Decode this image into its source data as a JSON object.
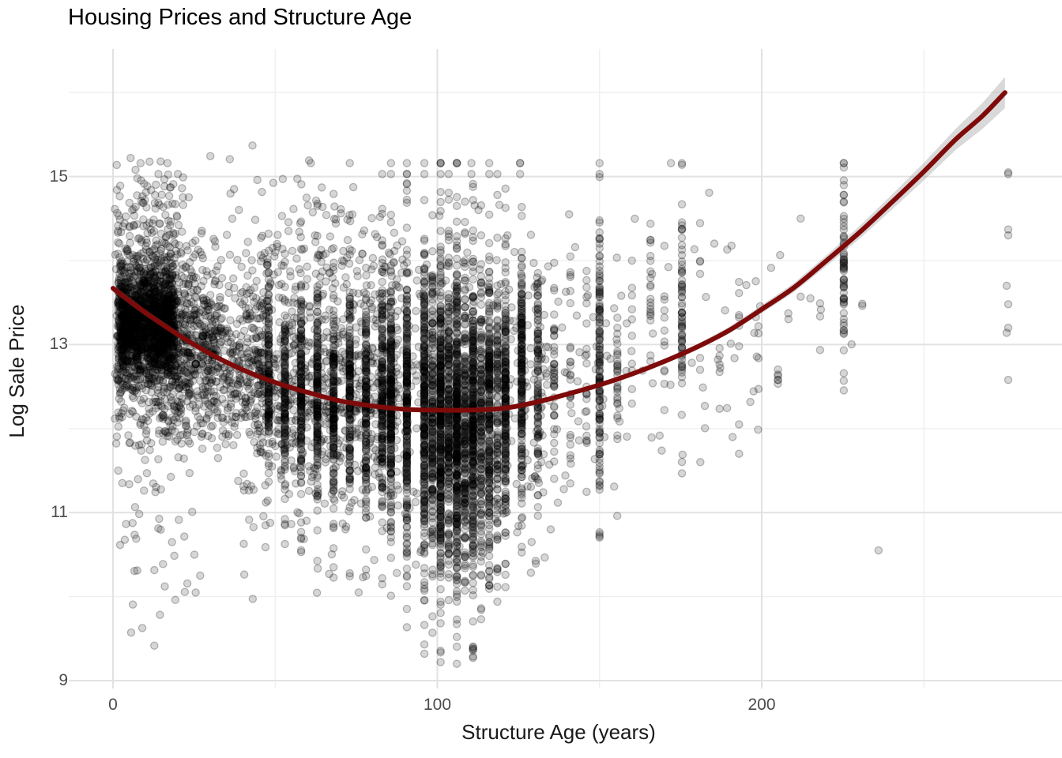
{
  "title": "Housing Prices and Structure Age",
  "axes": {
    "x": {
      "label": "Structure Age (years)",
      "ticks": [
        0,
        100,
        200
      ],
      "minor_ticks": [
        50,
        150,
        250
      ],
      "range": [
        -13.6,
        292.5
      ]
    },
    "y": {
      "label": "Log Sale Price",
      "ticks": [
        9,
        11,
        13,
        15
      ],
      "minor_ticks": [
        10,
        12,
        14,
        16
      ],
      "range": [
        8.88,
        16.52
      ]
    }
  },
  "colors": {
    "background": "#ffffff",
    "grid_major": "#e2e2e2",
    "grid_minor": "#efefef",
    "point": "#000000",
    "trend": "#7f0a0a",
    "ribbon": "#787878",
    "tick_label": "#4d4d4d",
    "title_text": "#000000"
  },
  "chart_data": {
    "type": "scatter",
    "title": "Housing Prices and Structure Age",
    "xlabel": "Structure Age (years)",
    "ylabel": "Log Sale Price",
    "xlim": [
      -13.6,
      292.5
    ],
    "ylim": [
      8.88,
      16.52
    ],
    "grid": "on",
    "legend": "none",
    "point_style": {
      "color": "#000000",
      "fill_alpha": 0.16,
      "stroke_alpha": 0.26,
      "stroke_width": 1.3,
      "radius": 4.6
    },
    "trend": {
      "color": "#7f0a0a",
      "width": 6,
      "ribbon_alpha": 0.28,
      "points": [
        [
          0,
          13.67
        ],
        [
          10,
          13.38
        ],
        [
          20,
          13.12
        ],
        [
          30,
          12.89
        ],
        [
          40,
          12.7
        ],
        [
          50,
          12.55
        ],
        [
          60,
          12.43
        ],
        [
          70,
          12.33
        ],
        [
          80,
          12.27
        ],
        [
          90,
          12.23
        ],
        [
          100,
          12.22
        ],
        [
          110,
          12.22
        ],
        [
          120,
          12.24
        ],
        [
          130,
          12.31
        ],
        [
          140,
          12.41
        ],
        [
          150,
          12.52
        ],
        [
          160,
          12.65
        ],
        [
          170,
          12.8
        ],
        [
          180,
          12.97
        ],
        [
          190,
          13.17
        ],
        [
          200,
          13.42
        ],
        [
          210,
          13.68
        ],
        [
          220,
          14.0
        ],
        [
          230,
          14.33
        ],
        [
          240,
          14.69
        ],
        [
          250,
          15.06
        ],
        [
          260,
          15.45
        ],
        [
          268,
          15.72
        ],
        [
          275,
          16.0
        ]
      ],
      "ribbon_halfwidth": [
        [
          0,
          0.045
        ],
        [
          40,
          0.025
        ],
        [
          80,
          0.018
        ],
        [
          130,
          0.018
        ],
        [
          160,
          0.025
        ],
        [
          190,
          0.04
        ],
        [
          210,
          0.055
        ],
        [
          230,
          0.075
        ],
        [
          245,
          0.095
        ],
        [
          258,
          0.12
        ],
        [
          266,
          0.145
        ],
        [
          275,
          0.185
        ]
      ]
    },
    "scatter_spec": {
      "seed": 1337,
      "clouds": [
        {
          "a0": 1.5,
          "a1": 19,
          "n": 1400,
          "mean": 13.25,
          "sd": 0.34,
          "min": 12.3,
          "max": 14.3
        },
        {
          "a0": 1,
          "a1": 26,
          "n": 500,
          "mean": 13.1,
          "sd": 0.6,
          "min": 11.7,
          "max": 14.6
        },
        {
          "a0": 0.5,
          "a1": 24,
          "n": 150,
          "mean": 12.7,
          "sd": 1.0,
          "min": 10.6,
          "max": 15.2
        },
        {
          "a0": 1,
          "a1": 22,
          "n": 95,
          "mean": 14.55,
          "sd": 0.33,
          "min": 14.05,
          "max": 15.25
        },
        {
          "a0": 2,
          "a1": 30,
          "n": 30,
          "mean": 10.6,
          "sd": 0.55,
          "min": 9.4,
          "max": 11.4
        },
        {
          "a0": 12,
          "a1": 32,
          "n": 360,
          "mean": 12.95,
          "sd": 0.5,
          "min": 11.6,
          "max": 14.4
        },
        {
          "a0": 26,
          "a1": 48,
          "n": 420,
          "mean": 12.8,
          "sd": 0.55,
          "min": 11.2,
          "max": 14.5
        },
        {
          "a0": 30,
          "a1": 80,
          "n": 65,
          "mean": 14.3,
          "sd": 0.5,
          "min": 13.6,
          "max": 15.3
        },
        {
          "a0": 44,
          "a1": 88,
          "n": 640,
          "mean": 12.45,
          "sd": 0.55,
          "min": 10.8,
          "max": 14.2
        },
        {
          "a0": 45,
          "a1": 90,
          "n": 120,
          "mean": 13.8,
          "sd": 0.4,
          "min": 13.2,
          "max": 14.8
        },
        {
          "a0": 40,
          "a1": 85,
          "n": 70,
          "mean": 11.2,
          "sd": 0.5,
          "min": 9.9,
          "max": 12.0
        },
        {
          "a0": 85,
          "a1": 135,
          "n": 360,
          "mean": 12.4,
          "sd": 0.9,
          "min": 9.8,
          "max": 15.0
        },
        {
          "a0": 135,
          "a1": 160,
          "n": 50,
          "mean": 12.6,
          "sd": 0.8,
          "min": 10.9,
          "max": 14.6
        },
        {
          "a0": 160,
          "a1": 200,
          "n": 38,
          "mean": 13.1,
          "sd": 1.0,
          "min": 11.3,
          "max": 15.2
        },
        {
          "a0": 200,
          "a1": 232,
          "n": 6,
          "mean": 13.5,
          "sd": 0.8,
          "min": 12.4,
          "max": 14.8
        }
      ],
      "columns": [
        {
          "age": 48,
          "n": 70,
          "mean": 12.55,
          "sd": 0.45,
          "min": 11.4,
          "max": 13.8
        },
        {
          "age": 48,
          "n": 40,
          "mean": 12.5,
          "sd": 0.9,
          "min": 10.5,
          "max": 14.8
        },
        {
          "age": 53,
          "n": 90,
          "mean": 12.5,
          "sd": 0.5,
          "min": 11.3,
          "max": 13.8
        },
        {
          "age": 53,
          "n": 40,
          "mean": 12.5,
          "sd": 0.95,
          "min": 10.4,
          "max": 15.0
        },
        {
          "age": 58,
          "n": 110,
          "mean": 12.45,
          "sd": 0.5,
          "min": 11.2,
          "max": 13.8
        },
        {
          "age": 58,
          "n": 45,
          "mean": 12.4,
          "sd": 1.0,
          "min": 10.3,
          "max": 15.0
        },
        {
          "age": 63,
          "n": 120,
          "mean": 12.4,
          "sd": 0.5,
          "min": 11.2,
          "max": 13.8
        },
        {
          "age": 63,
          "n": 50,
          "mean": 12.4,
          "sd": 1.0,
          "min": 10.2,
          "max": 15.0
        },
        {
          "age": 68,
          "n": 120,
          "mean": 12.35,
          "sd": 0.5,
          "min": 11.1,
          "max": 13.8
        },
        {
          "age": 68,
          "n": 50,
          "mean": 12.4,
          "sd": 1.0,
          "min": 10.2,
          "max": 15.0
        },
        {
          "age": 73,
          "n": 110,
          "mean": 12.35,
          "sd": 0.55,
          "min": 11.0,
          "max": 13.9
        },
        {
          "age": 73,
          "n": 50,
          "mean": 12.4,
          "sd": 1.0,
          "min": 10.0,
          "max": 15.0
        },
        {
          "age": 78,
          "n": 100,
          "mean": 12.35,
          "sd": 0.55,
          "min": 11.0,
          "max": 13.9
        },
        {
          "age": 78,
          "n": 50,
          "mean": 12.3,
          "sd": 1.0,
          "min": 10.0,
          "max": 15.0
        },
        {
          "age": 83,
          "n": 120,
          "mean": 12.3,
          "sd": 0.6,
          "min": 10.9,
          "max": 14.0
        },
        {
          "age": 83,
          "n": 60,
          "mean": 12.3,
          "sd": 1.1,
          "min": 9.9,
          "max": 15.0
        },
        {
          "age": 85.7,
          "n": 150,
          "mean": 12.3,
          "sd": 0.65,
          "min": 10.7,
          "max": 14.2
        },
        {
          "age": 85.7,
          "n": 75,
          "mean": 12.3,
          "sd": 1.2,
          "min": 9.8,
          "max": 15.05
        },
        {
          "age": 90.6,
          "n": 170,
          "mean": 12.25,
          "sd": 0.7,
          "min": 10.5,
          "max": 14.3
        },
        {
          "age": 90.6,
          "n": 85,
          "mean": 12.2,
          "sd": 1.3,
          "min": 9.6,
          "max": 15.05
        },
        {
          "age": 96,
          "n": 190,
          "mean": 12.2,
          "sd": 0.75,
          "min": 10.3,
          "max": 14.4
        },
        {
          "age": 96,
          "n": 95,
          "mean": 12.2,
          "sd": 1.3,
          "min": 9.3,
          "max": 15.05
        },
        {
          "age": 98.5,
          "n": 130,
          "mean": 12.2,
          "sd": 0.75,
          "min": 10.3,
          "max": 14.4
        },
        {
          "age": 98.5,
          "n": 65,
          "mean": 12.2,
          "sd": 1.3,
          "min": 9.5,
          "max": 15.0
        },
        {
          "age": 101,
          "n": 240,
          "mean": 12.15,
          "sd": 0.8,
          "min": 10.2,
          "max": 14.5
        },
        {
          "age": 101,
          "n": 125,
          "mean": 12.1,
          "sd": 1.4,
          "min": 9.2,
          "max": 15.05
        },
        {
          "age": 103.5,
          "n": 150,
          "mean": 12.1,
          "sd": 0.8,
          "min": 10.2,
          "max": 14.5
        },
        {
          "age": 103.5,
          "n": 75,
          "mean": 12.1,
          "sd": 1.35,
          "min": 9.4,
          "max": 15.0
        },
        {
          "age": 106,
          "n": 240,
          "mean": 12.1,
          "sd": 0.8,
          "min": 10.1,
          "max": 14.5
        },
        {
          "age": 106,
          "n": 125,
          "mean": 12.0,
          "sd": 1.4,
          "min": 9.2,
          "max": 15.05
        },
        {
          "age": 108.5,
          "n": 140,
          "mean": 12.05,
          "sd": 0.8,
          "min": 10.1,
          "max": 14.4
        },
        {
          "age": 108.5,
          "n": 70,
          "mean": 12.0,
          "sd": 1.3,
          "min": 9.4,
          "max": 15.0
        },
        {
          "age": 111,
          "n": 220,
          "mean": 12.0,
          "sd": 0.8,
          "min": 10.0,
          "max": 14.4
        },
        {
          "age": 111,
          "n": 110,
          "mean": 12.0,
          "sd": 1.35,
          "min": 9.25,
          "max": 15.0
        },
        {
          "age": 113.5,
          "n": 110,
          "mean": 12.1,
          "sd": 0.75,
          "min": 10.2,
          "max": 14.4
        },
        {
          "age": 113.5,
          "n": 55,
          "mean": 12.1,
          "sd": 1.25,
          "min": 9.6,
          "max": 15.0
        },
        {
          "age": 116,
          "n": 160,
          "mean": 12.15,
          "sd": 0.75,
          "min": 10.3,
          "max": 14.5
        },
        {
          "age": 116,
          "n": 80,
          "mean": 12.1,
          "sd": 1.25,
          "min": 9.7,
          "max": 15.0
        },
        {
          "age": 118.5,
          "n": 80,
          "mean": 12.2,
          "sd": 0.7,
          "min": 10.5,
          "max": 14.4
        },
        {
          "age": 118.5,
          "n": 40,
          "mean": 12.2,
          "sd": 1.2,
          "min": 9.9,
          "max": 15.0
        },
        {
          "age": 121,
          "n": 140,
          "mean": 12.3,
          "sd": 0.7,
          "min": 10.6,
          "max": 14.5
        },
        {
          "age": 121,
          "n": 70,
          "mean": 12.3,
          "sd": 1.15,
          "min": 10.1,
          "max": 15.0
        },
        {
          "age": 126,
          "n": 140,
          "mean": 12.55,
          "sd": 0.7,
          "min": 10.8,
          "max": 14.6
        },
        {
          "age": 126,
          "n": 70,
          "mean": 12.5,
          "sd": 1.1,
          "min": 10.3,
          "max": 15.1
        },
        {
          "age": 131,
          "n": 60,
          "mean": 12.6,
          "sd": 0.65,
          "min": 11.0,
          "max": 14.4
        },
        {
          "age": 131,
          "n": 35,
          "mean": 12.6,
          "sd": 1.0,
          "min": 10.5,
          "max": 15.0
        },
        {
          "age": 136,
          "n": 40,
          "mean": 12.6,
          "sd": 0.7,
          "min": 10.8,
          "max": 14.6
        },
        {
          "age": 141,
          "n": 25,
          "mean": 12.6,
          "sd": 0.65,
          "min": 11.0,
          "max": 14.4
        },
        {
          "age": 146,
          "n": 18,
          "mean": 12.7,
          "sd": 0.6,
          "min": 11.2,
          "max": 14.4
        },
        {
          "age": 150,
          "n": 85,
          "mean": 12.7,
          "sd": 0.7,
          "min": 11.3,
          "max": 14.6
        },
        {
          "age": 150,
          "n": 50,
          "mean": 12.7,
          "sd": 1.2,
          "min": 10.2,
          "max": 15.1
        },
        {
          "age": 155.5,
          "n": 28,
          "mean": 12.5,
          "sd": 0.45,
          "min": 11.8,
          "max": 13.4
        },
        {
          "age": 160,
          "n": 10,
          "mean": 13.0,
          "sd": 0.6,
          "min": 12.0,
          "max": 14.2
        },
        {
          "age": 165.7,
          "n": 20,
          "mean": 13.6,
          "sd": 0.5,
          "min": 12.7,
          "max": 14.85
        },
        {
          "age": 170,
          "n": 12,
          "mean": 13.1,
          "sd": 0.8,
          "min": 11.8,
          "max": 14.6
        },
        {
          "age": 175.4,
          "n": 42,
          "mean": 13.55,
          "sd": 0.6,
          "min": 12.5,
          "max": 14.9
        },
        {
          "age": 175.4,
          "n": 25,
          "mean": 13.4,
          "sd": 1.1,
          "min": 11.4,
          "max": 15.2
        },
        {
          "age": 181,
          "n": 6,
          "mean": 13.3,
          "sd": 0.7,
          "min": 12.2,
          "max": 14.6
        },
        {
          "age": 187,
          "n": 5,
          "mean": 13.1,
          "sd": 0.6,
          "min": 12.2,
          "max": 14.2
        },
        {
          "age": 193,
          "n": 6,
          "mean": 13.4,
          "sd": 0.6,
          "min": 12.4,
          "max": 14.3
        },
        {
          "age": 199,
          "n": 4,
          "mean": 12.8,
          "sd": 0.4,
          "min": 12.2,
          "max": 13.5
        },
        {
          "age": 205,
          "n": 6,
          "mean": 12.6,
          "sd": 0.08,
          "min": 12.45,
          "max": 12.75
        },
        {
          "age": 218,
          "n": 3,
          "mean": 13.3,
          "sd": 0.5,
          "min": 12.6,
          "max": 14.0
        },
        {
          "age": 225.3,
          "n": 42,
          "mean": 13.75,
          "sd": 0.55,
          "min": 12.9,
          "max": 15.0
        },
        {
          "age": 225.3,
          "n": 20,
          "mean": 13.6,
          "sd": 1.0,
          "min": 12.4,
          "max": 15.2
        },
        {
          "age": 231,
          "n": 2,
          "mean": 13.4,
          "sd": 0.3,
          "min": 13.0,
          "max": 13.8
        }
      ],
      "cap_rows": [
        {
          "v": 15.16,
          "ages": [
            8.5,
            16.8,
            61,
            73,
            85.7,
            90.6,
            96,
            101,
            101,
            101,
            106,
            106,
            106,
            110.5,
            116,
            125.5,
            125.5,
            150,
            172,
            175.4,
            225.3,
            225.3
          ]
        },
        {
          "v": 15.03,
          "ages": [
            14,
            20,
            83,
            85.7,
            90.6,
            96,
            101,
            103.5,
            110.5,
            116,
            118.5,
            125.5,
            150,
            276
          ]
        }
      ],
      "extra_points": [
        [
          43,
          15.37,
          1
        ],
        [
          25.5,
          12.77,
          6
        ],
        [
          236,
          10.55,
          1
        ],
        [
          276,
          15.05,
          1
        ],
        [
          276,
          14.37,
          1
        ],
        [
          276,
          14.3,
          1
        ],
        [
          275.5,
          13.7,
          1
        ],
        [
          276,
          13.48,
          1
        ],
        [
          276,
          13.2,
          1
        ],
        [
          275.5,
          13.14,
          1
        ],
        [
          276,
          12.58,
          1
        ],
        [
          212,
          14.5,
          1
        ],
        [
          212,
          13.57,
          1
        ],
        [
          215,
          13.55,
          1
        ],
        [
          191,
          11.9,
          1
        ],
        [
          193,
          11.7,
          1
        ],
        [
          193,
          12.05,
          1
        ],
        [
          101,
          9.22,
          1
        ],
        [
          106,
          9.2,
          1
        ],
        [
          111,
          9.27,
          1
        ],
        [
          96,
          9.32,
          1
        ]
      ]
    }
  }
}
